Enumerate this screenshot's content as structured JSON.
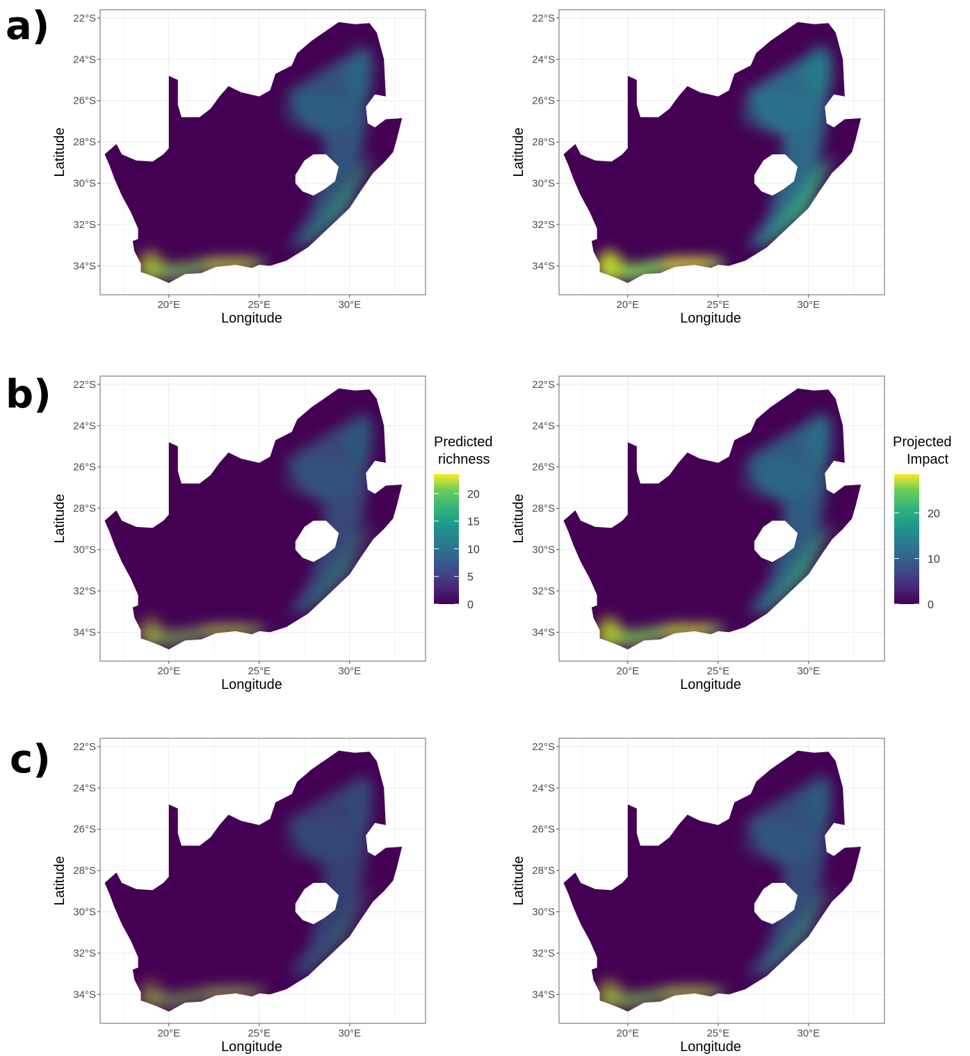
{
  "rows": [
    {
      "label": "a)"
    },
    {
      "label": "b)"
    },
    {
      "label": "c)"
    }
  ],
  "axes": {
    "xlabel": "Longitude",
    "ylabel": "Latitude",
    "xticks": [
      "20°E",
      "25°E",
      "30°E"
    ],
    "yticks": [
      "22°S",
      "24°S",
      "26°S",
      "28°S",
      "30°S",
      "32°S",
      "34°S"
    ],
    "xvalues": [
      20,
      25,
      30
    ],
    "yvalues": [
      -22,
      -24,
      -26,
      -28,
      -30,
      -32,
      -34
    ],
    "xlim": [
      16.2,
      34.2
    ],
    "ylim": [
      -35.4,
      -21.6
    ]
  },
  "legends": {
    "richness": {
      "title_line1": "Predicted",
      "title_line2": "richness",
      "ticks": [
        "20",
        "15",
        "10",
        "5",
        "0"
      ],
      "tick_values": [
        20,
        15,
        10,
        5,
        0
      ],
      "max": 23.5
    },
    "impact": {
      "title_line1": "Projected",
      "title_line2": "Impact",
      "ticks": [
        "20",
        "10",
        "0"
      ],
      "tick_values": [
        20,
        10,
        0
      ],
      "max": 28.5
    }
  },
  "colors": {
    "viridis_low": "#440154",
    "viridis_mid": "#21908d",
    "viridis_high": "#fde725",
    "background": "#ffffff"
  },
  "chart_data": [
    {
      "type": "heatmap",
      "row": "a",
      "column": "left",
      "scale": "richness",
      "intensity": 0.55
    },
    {
      "type": "heatmap",
      "row": "a",
      "column": "right",
      "scale": "impact",
      "intensity": 0.85
    },
    {
      "type": "heatmap",
      "row": "b",
      "column": "left",
      "scale": "richness",
      "intensity": 0.4
    },
    {
      "type": "heatmap",
      "row": "b",
      "column": "right",
      "scale": "impact",
      "intensity": 0.65
    },
    {
      "type": "heatmap",
      "row": "c",
      "column": "left",
      "scale": "richness",
      "intensity": 0.28
    },
    {
      "type": "heatmap",
      "row": "c",
      "column": "right",
      "scale": "impact",
      "intensity": 0.45
    }
  ]
}
